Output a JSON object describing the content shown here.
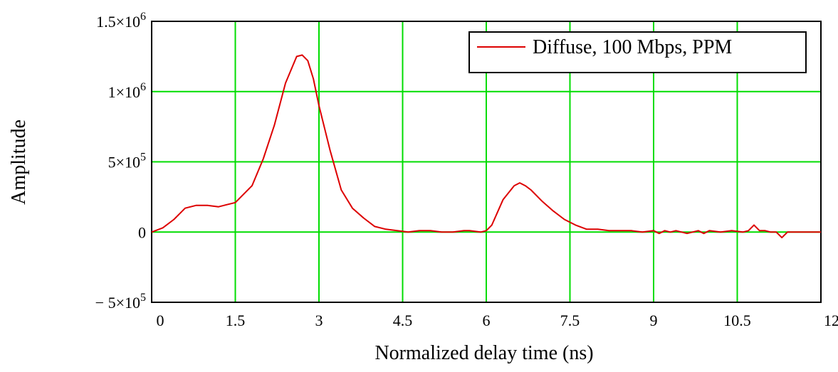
{
  "chart_data": {
    "type": "line",
    "title": "",
    "xlabel": "Normalized delay time (ns)",
    "ylabel": "Amplitude",
    "xlim": [
      0,
      12
    ],
    "ylim": [
      -500000,
      1500000
    ],
    "x_ticks": [
      0,
      1.5,
      3,
      4.5,
      6,
      7.5,
      9,
      10.5,
      12
    ],
    "x_tick_labels": [
      "0",
      "1.5",
      "3",
      "4.5",
      "6",
      "7.5",
      "9",
      "10.5",
      "12"
    ],
    "y_ticks": [
      -500000,
      0,
      500000,
      1000000,
      1500000
    ],
    "y_tick_labels": [
      {
        "prefix": "− 5×10",
        "exp": "5"
      },
      {
        "prefix": "0",
        "exp": ""
      },
      {
        "prefix": "5×10",
        "exp": "5"
      },
      {
        "prefix": "1×10",
        "exp": "6"
      },
      {
        "prefix": "1.5×10",
        "exp": "6"
      }
    ],
    "grid": true,
    "grid_color": "#00dd00",
    "legend_position": "top-right",
    "series": [
      {
        "name": "Diffuse, 100 Mbps, PPM",
        "color": "#dd0000",
        "x": [
          0,
          0.2,
          0.4,
          0.6,
          0.8,
          1.0,
          1.2,
          1.35,
          1.5,
          1.6,
          1.8,
          2.0,
          2.2,
          2.4,
          2.6,
          2.7,
          2.8,
          2.9,
          3.0,
          3.2,
          3.4,
          3.6,
          3.8,
          4.0,
          4.2,
          4.4,
          4.6,
          4.8,
          5.0,
          5.2,
          5.4,
          5.6,
          5.7,
          5.9,
          6.0,
          6.1,
          6.3,
          6.5,
          6.6,
          6.7,
          6.8,
          7.0,
          7.2,
          7.4,
          7.6,
          7.8,
          8.0,
          8.2,
          8.4,
          8.6,
          8.8,
          9.0,
          9.1,
          9.2,
          9.3,
          9.4,
          9.6,
          9.8,
          9.9,
          10.0,
          10.2,
          10.4,
          10.6,
          10.7,
          10.8,
          10.9,
          11.0,
          11.1,
          11.2,
          11.3,
          11.4,
          11.6,
          11.8,
          12.0
        ],
        "y": [
          0,
          30000,
          90000,
          170000,
          190000,
          190000,
          180000,
          195000,
          210000,
          250000,
          330000,
          520000,
          760000,
          1060000,
          1250000,
          1260000,
          1220000,
          1090000,
          900000,
          580000,
          300000,
          170000,
          100000,
          40000,
          20000,
          10000,
          0,
          10000,
          10000,
          0,
          0,
          10000,
          10000,
          0,
          10000,
          50000,
          230000,
          330000,
          350000,
          330000,
          300000,
          220000,
          150000,
          90000,
          50000,
          20000,
          20000,
          10000,
          10000,
          10000,
          0,
          10000,
          -10000,
          10000,
          0,
          10000,
          -10000,
          10000,
          -10000,
          10000,
          0,
          10000,
          0,
          10000,
          50000,
          10000,
          10000,
          0,
          0,
          -40000,
          0,
          0,
          0,
          0
        ]
      }
    ]
  }
}
